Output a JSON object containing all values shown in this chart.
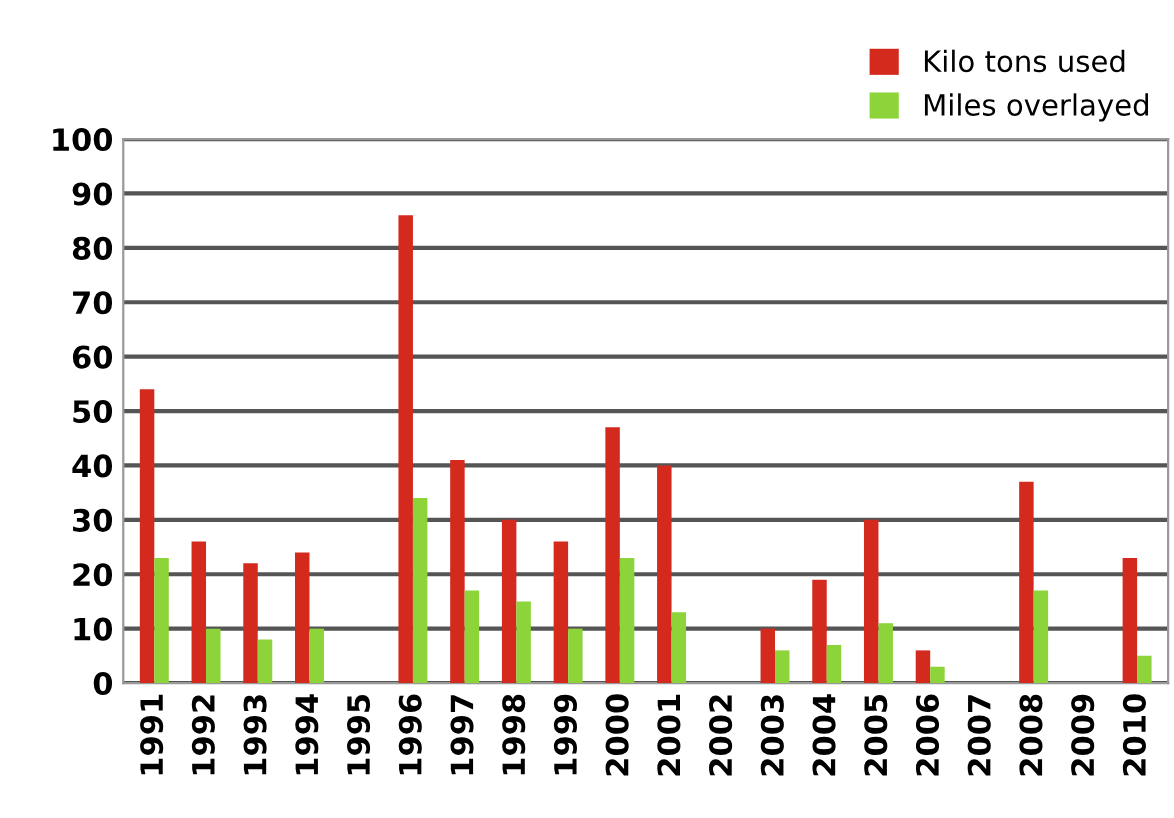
{
  "chart_data": {
    "type": "bar",
    "categories": [
      "1991",
      "1992",
      "1993",
      "1994",
      "1995",
      "1996",
      "1997",
      "1998",
      "1999",
      "2000",
      "2001",
      "2002",
      "2003",
      "2004",
      "2005",
      "2006",
      "2007",
      "2008",
      "2009",
      "2010"
    ],
    "series": [
      {
        "name": "Kilo tons used",
        "color": "#d42a1e",
        "values": [
          54,
          26,
          22,
          24,
          null,
          86,
          41,
          30,
          26,
          47,
          40,
          null,
          10,
          19,
          30,
          6,
          null,
          37,
          null,
          23
        ]
      },
      {
        "name": "Miles overlayed",
        "color": "#8cd43a",
        "values": [
          23,
          10,
          8,
          10,
          null,
          34,
          17,
          15,
          10,
          23,
          13,
          null,
          6,
          7,
          11,
          3,
          null,
          17,
          null,
          5
        ]
      }
    ],
    "ylim": [
      0,
      100
    ],
    "yticks": [
      0,
      10,
      20,
      30,
      40,
      50,
      60,
      70,
      80,
      90,
      100
    ],
    "grid": "y",
    "legend": "top right"
  }
}
